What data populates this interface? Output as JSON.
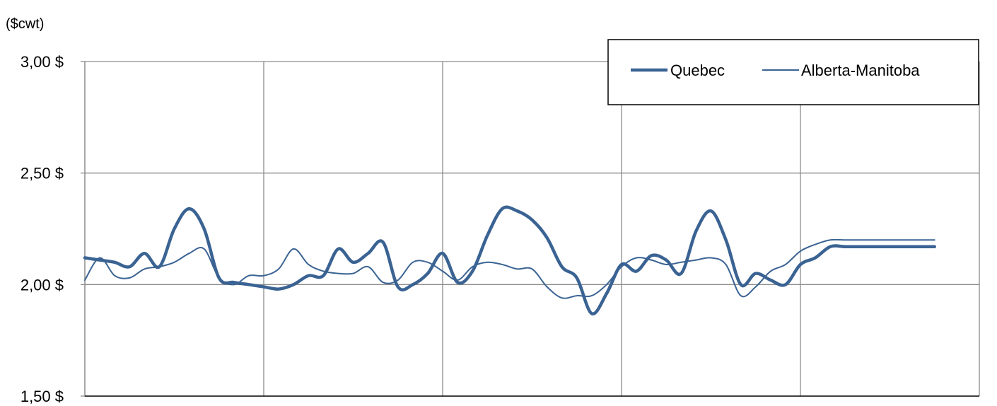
{
  "chart_data": {
    "type": "line",
    "unit_label": "($cwt)",
    "ylim": [
      1.5,
      3.0
    ],
    "y_ticks": [
      {
        "value": 3.0,
        "label": "3,00 $"
      },
      {
        "value": 2.5,
        "label": "2,50 $"
      },
      {
        "value": 2.0,
        "label": "2,00 $"
      },
      {
        "value": 1.5,
        "label": "1,50 $"
      }
    ],
    "x_range": [
      0,
      240
    ],
    "x_gridlines": [
      0,
      48,
      96,
      144,
      192,
      240
    ],
    "grid": true,
    "legend_position": "top-right",
    "series": [
      {
        "name": "Quebec",
        "color": "#3a6393",
        "line": "thick",
        "x": [
          0,
          4,
          8,
          12,
          16,
          20,
          24,
          28,
          32,
          36,
          40,
          44,
          48,
          52,
          56,
          60,
          64,
          68,
          72,
          76,
          80,
          84,
          88,
          92,
          96,
          100,
          104,
          108,
          112,
          116,
          120,
          124,
          128,
          132,
          136,
          140,
          144,
          148,
          152,
          156,
          160,
          164,
          168,
          172,
          176,
          180,
          184,
          188,
          192,
          196,
          200,
          204,
          208,
          212,
          216,
          220,
          224,
          228
        ],
        "values": [
          2.12,
          2.11,
          2.1,
          2.08,
          2.14,
          2.08,
          2.25,
          2.34,
          2.25,
          2.03,
          2.01,
          2.0,
          1.99,
          1.98,
          2.0,
          2.04,
          2.04,
          2.16,
          2.1,
          2.14,
          2.19,
          1.99,
          2.0,
          2.05,
          2.14,
          2.01,
          2.06,
          2.22,
          2.34,
          2.33,
          2.29,
          2.21,
          2.08,
          2.03,
          1.87,
          1.96,
          2.09,
          2.06,
          2.13,
          2.11,
          2.05,
          2.24,
          2.33,
          2.2,
          2.0,
          2.05,
          2.02,
          2.0,
          2.09,
          2.12,
          2.17,
          2.17,
          2.17,
          2.17,
          2.17,
          2.17,
          2.17,
          2.17
        ]
      },
      {
        "name": "Alberta-Manitoba",
        "color": "#3a6393",
        "line": "thin",
        "x": [
          0,
          4,
          8,
          12,
          16,
          20,
          24,
          28,
          32,
          36,
          40,
          44,
          48,
          52,
          56,
          60,
          64,
          68,
          72,
          76,
          80,
          84,
          88,
          92,
          96,
          100,
          104,
          108,
          112,
          116,
          120,
          124,
          128,
          132,
          136,
          140,
          144,
          148,
          152,
          156,
          160,
          164,
          168,
          172,
          176,
          180,
          184,
          188,
          192,
          196,
          200,
          204,
          208,
          212,
          216,
          220,
          224,
          228
        ],
        "values": [
          2.02,
          2.12,
          2.04,
          2.03,
          2.07,
          2.08,
          2.1,
          2.14,
          2.16,
          2.03,
          2.0,
          2.04,
          2.04,
          2.07,
          2.16,
          2.09,
          2.06,
          2.05,
          2.05,
          2.08,
          2.01,
          2.02,
          2.1,
          2.1,
          2.06,
          2.02,
          2.08,
          2.1,
          2.09,
          2.07,
          2.07,
          1.99,
          1.94,
          1.95,
          1.95,
          2.0,
          2.08,
          2.12,
          2.11,
          2.09,
          2.1,
          2.11,
          2.12,
          2.09,
          1.95,
          1.99,
          2.06,
          2.09,
          2.15,
          2.18,
          2.2,
          2.2,
          2.2,
          2.2,
          2.2,
          2.2,
          2.2,
          2.2
        ]
      }
    ]
  }
}
